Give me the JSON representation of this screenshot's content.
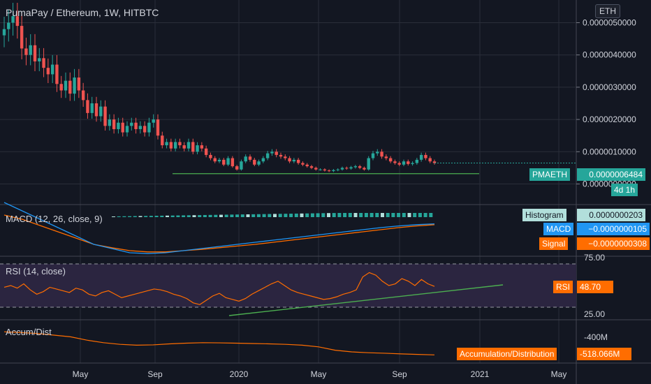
{
  "header": {
    "title": "PumaPay / Ethereum, 1W, HITBTC",
    "currency_button": "ETH"
  },
  "colors": {
    "background": "#131722",
    "grid": "#2a2e39",
    "up": "#26a69a",
    "down": "#ef5350",
    "support_line": "#4caf50",
    "macd_line": "#2196f3",
    "signal_line": "#ff6d00",
    "rsi_line": "#ff6d00",
    "rsi_band": "#2b2540",
    "accum_line": "#ff6d00"
  },
  "price_panel": {
    "y_ticks": [
      "0.0000050000",
      "0.0000040000",
      "0.0000030000",
      "0.0000020000",
      "0.0000010000",
      "0.0000000000"
    ],
    "symbol_tag": "PMAETH",
    "last_price": "0.0000006484",
    "countdown": "4d 1h"
  },
  "macd_panel": {
    "label": "MACD (12, 26, close, 9)",
    "histogram_label": "Histogram",
    "histogram_value": "0.0000000203",
    "macd_label": "MACD",
    "macd_value": "−0.0000000105",
    "signal_label": "Signal",
    "signal_value": "−0.0000000308"
  },
  "rsi_panel": {
    "label": "RSI (14, close)",
    "upper_tick": "75.00",
    "lower_tick": "25.00",
    "value_label": "RSI",
    "value": "48.70"
  },
  "accum_panel": {
    "label": "Accum/Dist",
    "tick": "-400M",
    "value_label": "Accumulation/Distribution",
    "value": "-518.066M"
  },
  "x_axis": {
    "labels": [
      "May",
      "Sep",
      "2020",
      "May",
      "Sep",
      "2021",
      "May"
    ]
  },
  "chart_data": {
    "type": "candlestick",
    "title": "PumaPay / Ethereum, 1W, HITBTC",
    "x_labels": [
      "May",
      "Sep",
      "2020",
      "May",
      "Sep",
      "2021",
      "May"
    ],
    "y_ticks": [
      5e-06,
      4e-06,
      3e-06,
      2e-06,
      1e-06,
      0
    ],
    "ylim": [
      -4e-07,
      5.4e-06
    ],
    "support_level": 3.2e-07,
    "last_price": 6.484e-07,
    "ohlc_close_series": [
      4.8e-06,
      5e-06,
      5.2e-06,
      4.9e-06,
      4.2e-06,
      4e-06,
      4.3e-06,
      3.8e-06,
      3.9e-06,
      3.6e-06,
      3.4e-06,
      3.7e-06,
      3.1e-06,
      2.9e-06,
      3.2e-06,
      2.8e-06,
      3.3e-06,
      2.9e-06,
      2.6e-06,
      2.2e-06,
      2.5e-06,
      2.1e-06,
      2.4e-06,
      1.8e-06,
      2e-06,
      1.7e-06,
      1.9e-06,
      1.6e-06,
      1.8e-06,
      1.9e-06,
      1.7e-06,
      1.8e-06,
      1.6e-06,
      1.9e-06,
      2e-06,
      1.5e-06,
      1.2e-06,
      1.3e-06,
      1.1e-06,
      1.3e-06,
      1.2e-06,
      1.1e-06,
      1.3e-06,
      1e-06,
      1.2e-06,
      1.1e-06,
      9e-07,
      8e-07,
      7e-07,
      7.5e-07,
      6e-07,
      8e-07,
      5.5e-07,
      4.5e-07,
      7e-07,
      8.5e-07,
      7.5e-07,
      6e-07,
      7e-07,
      8e-07,
      9.5e-07,
      1e-06,
      9e-07,
      8.5e-07,
      8e-07,
      7e-07,
      7.5e-07,
      6.5e-07,
      6e-07,
      5.5e-07,
      5e-07,
      4.5e-07,
      4.5e-07,
      4.2e-07,
      4e-07,
      4.3e-07,
      4.5e-07,
      5e-07,
      4.8e-07,
      5.2e-07,
      5.5e-07,
      5e-07,
      4.5e-07,
      8e-07,
      9.5e-07,
      1e-06,
      8.5e-07,
      8e-07,
      7e-07,
      6.5e-07,
      6e-07,
      7e-07,
      6.2e-07,
      6.5e-07,
      7.5e-07,
      9e-07,
      8e-07,
      7e-07,
      6.5e-07
    ],
    "macd": [
      0.5,
      0.3,
      0.1,
      -0.1,
      -0.3,
      -0.5,
      -0.6,
      -0.7,
      -0.72,
      -0.7,
      -0.65,
      -0.6,
      -0.55,
      -0.5,
      -0.45,
      -0.4,
      -0.35,
      -0.3,
      -0.25,
      -0.2,
      -0.15,
      -0.1,
      -0.06,
      -0.03,
      -0.01
    ],
    "signal": [
      0.2,
      0.1,
      -0.05,
      -0.2,
      -0.35,
      -0.5,
      -0.58,
      -0.65,
      -0.68,
      -0.68,
      -0.65,
      -0.62,
      -0.58,
      -0.54,
      -0.5,
      -0.45,
      -0.4,
      -0.35,
      -0.3,
      -0.25,
      -0.2,
      -0.15,
      -0.1,
      -0.06,
      -0.03
    ],
    "rsi": [
      48,
      50,
      47,
      52,
      45,
      40,
      43,
      48,
      46,
      44,
      42,
      47,
      45,
      40,
      38,
      42,
      44,
      40,
      36,
      38,
      40,
      42,
      44,
      46,
      45,
      43,
      40,
      38,
      35,
      30,
      28,
      33,
      38,
      41,
      36,
      34,
      32,
      35,
      40,
      44,
      48,
      52,
      55,
      50,
      45,
      42,
      40,
      38,
      36,
      34,
      35,
      37,
      40,
      42,
      45,
      60,
      65,
      62,
      55,
      50,
      52,
      58,
      55,
      50,
      57,
      52,
      49
    ],
    "rsi_levels": [
      25,
      75
    ],
    "accum_dist_m": [
      -380,
      -385,
      -390,
      -400,
      -410,
      -430,
      -445,
      -455,
      -460,
      -458,
      -452,
      -448,
      -445,
      -446,
      -448,
      -450,
      -452,
      -455,
      -460,
      -470,
      -490,
      -500,
      -505,
      -508,
      -512,
      -515,
      -518
    ]
  }
}
